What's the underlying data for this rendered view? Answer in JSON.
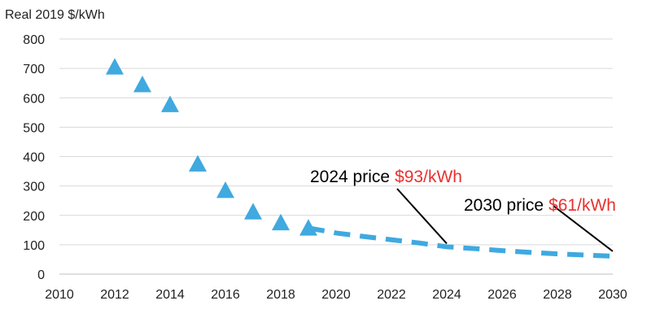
{
  "chart_data": {
    "type": "scatter",
    "title": "",
    "ylabel": "Real 2019 $/kWh",
    "xlabel": "",
    "xlim": [
      2010,
      2030
    ],
    "ylim": [
      0,
      800
    ],
    "x_ticks": [
      2010,
      2012,
      2014,
      2016,
      2018,
      2020,
      2022,
      2024,
      2026,
      2028,
      2030
    ],
    "y_ticks": [
      0,
      100,
      200,
      300,
      400,
      500,
      600,
      700,
      800
    ],
    "grid": "horizontal",
    "legend": "none",
    "series": [
      {
        "kind": "historical",
        "marker": "triangle",
        "color": "#3fa9e0",
        "x": [
          2012,
          2013,
          2014,
          2015,
          2016,
          2017,
          2018,
          2019
        ],
        "y": [
          705,
          645,
          577,
          375,
          285,
          212,
          175,
          157
        ]
      },
      {
        "kind": "forecast",
        "line_style": "dashed",
        "color": "#3fa9e0",
        "x": [
          2019,
          2020,
          2021,
          2022,
          2023,
          2024,
          2025,
          2026,
          2027,
          2028,
          2029,
          2030
        ],
        "y": [
          157,
          140,
          128,
          117,
          106,
          93,
          87,
          80,
          74,
          69,
          65,
          61
        ]
      }
    ],
    "annotations": [
      {
        "prefix": "2024 price",
        "value": "$93/kWh",
        "x": 2024,
        "y": 93
      },
      {
        "prefix": "2030 price",
        "value": "$61/kWh",
        "x": 2030,
        "y": 61
      }
    ]
  }
}
